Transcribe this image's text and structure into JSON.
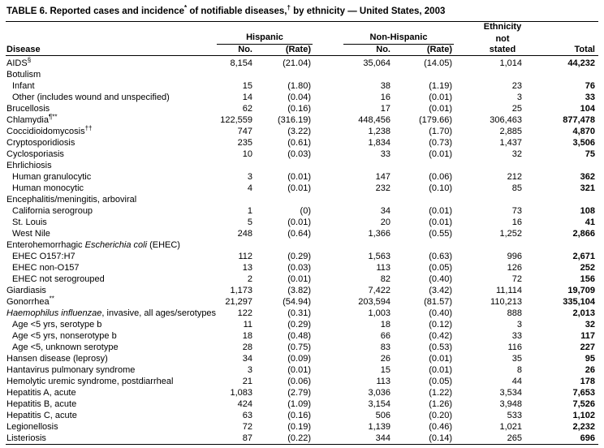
{
  "title_segments": [
    {
      "t": "TABLE 6. Reported cases and incidence"
    },
    {
      "t": "*",
      "sup": true
    },
    {
      "t": " of notifiable diseases,"
    },
    {
      "t": "†",
      "sup": true
    },
    {
      "t": " by ethnicity — United States, 2003"
    }
  ],
  "table": {
    "headers": {
      "disease": "Disease",
      "group_hispanic": "Hispanic",
      "group_non_hispanic": "Non-Hispanic",
      "no": "No.",
      "rate": "(Rate)",
      "ethnicity_line1": "Ethnicity",
      "ethnicity_line2": "not",
      "ethnicity_line3": "stated",
      "total": "Total"
    },
    "rows": [
      {
        "disease": [
          {
            "t": "AIDS"
          },
          {
            "t": "§",
            "sup": true
          }
        ],
        "indent": 0,
        "cells": [
          "8,154",
          "(21.04)",
          "35,064",
          "(14.05)",
          "1,014",
          "44,232"
        ]
      },
      {
        "disease": "Botulism",
        "indent": 0,
        "cells": []
      },
      {
        "disease": "Infant",
        "indent": 1,
        "cells": [
          "15",
          "(1.80)",
          "38",
          "(1.19)",
          "23",
          "76"
        ]
      },
      {
        "disease": "Other (includes wound and unspecified)",
        "indent": 1,
        "cells": [
          "14",
          "(0.04)",
          "16",
          "(0.01)",
          "3",
          "33"
        ]
      },
      {
        "disease": "Brucellosis",
        "indent": 0,
        "cells": [
          "62",
          "(0.16)",
          "17",
          "(0.01)",
          "25",
          "104"
        ]
      },
      {
        "disease": [
          {
            "t": "Chlamydia"
          },
          {
            "t": "¶**",
            "sup": true
          }
        ],
        "indent": 0,
        "cells": [
          "122,559",
          "(316.19)",
          "448,456",
          "(179.66)",
          "306,463",
          "877,478"
        ]
      },
      {
        "disease": [
          {
            "t": "Coccidioidomycosis"
          },
          {
            "t": "††",
            "sup": true
          }
        ],
        "indent": 0,
        "cells": [
          "747",
          "(3.22)",
          "1,238",
          "(1.70)",
          "2,885",
          "4,870"
        ]
      },
      {
        "disease": "Cryptosporidiosis",
        "indent": 0,
        "cells": [
          "235",
          "(0.61)",
          "1,834",
          "(0.73)",
          "1,437",
          "3,506"
        ]
      },
      {
        "disease": "Cyclosporiasis",
        "indent": 0,
        "cells": [
          "10",
          "(0.03)",
          "33",
          "(0.01)",
          "32",
          "75"
        ]
      },
      {
        "disease": "Ehrlichiosis",
        "indent": 0,
        "cells": []
      },
      {
        "disease": "Human granulocytic",
        "indent": 1,
        "cells": [
          "3",
          "(0.01)",
          "147",
          "(0.06)",
          "212",
          "362"
        ]
      },
      {
        "disease": "Human monocytic",
        "indent": 1,
        "cells": [
          "4",
          "(0.01)",
          "232",
          "(0.10)",
          "85",
          "321"
        ]
      },
      {
        "disease": "Encephalitis/meningitis, arboviral",
        "indent": 0,
        "cells": []
      },
      {
        "disease": "California serogroup",
        "indent": 1,
        "cells": [
          "1",
          "(0)",
          "34",
          "(0.01)",
          "73",
          "108"
        ]
      },
      {
        "disease": "St. Louis",
        "indent": 1,
        "cells": [
          "5",
          "(0.01)",
          "20",
          "(0.01)",
          "16",
          "41"
        ]
      },
      {
        "disease": "West Nile",
        "indent": 1,
        "cells": [
          "248",
          "(0.64)",
          "1,366",
          "(0.55)",
          "1,252",
          "2,866"
        ]
      },
      {
        "disease": [
          {
            "t": "Enterohemorrhagic "
          },
          {
            "t": "Escherichia coli",
            "it": true
          },
          {
            "t": " (EHEC)"
          }
        ],
        "indent": 0,
        "cells": []
      },
      {
        "disease": "EHEC O157:H7",
        "indent": 1,
        "cells": [
          "112",
          "(0.29)",
          "1,563",
          "(0.63)",
          "996",
          "2,671"
        ]
      },
      {
        "disease": "EHEC non-O157",
        "indent": 1,
        "cells": [
          "13",
          "(0.03)",
          "113",
          "(0.05)",
          "126",
          "252"
        ]
      },
      {
        "disease": "EHEC not serogrouped",
        "indent": 1,
        "cells": [
          "2",
          "(0.01)",
          "82",
          "(0.40)",
          "72",
          "156"
        ]
      },
      {
        "disease": "Giardiasis",
        "indent": 0,
        "cells": [
          "1,173",
          "(3.82)",
          "7,422",
          "(3.42)",
          "11,114",
          "19,709"
        ]
      },
      {
        "disease": [
          {
            "t": "Gonorrhea"
          },
          {
            "t": "**",
            "sup": true
          }
        ],
        "indent": 0,
        "cells": [
          "21,297",
          "(54.94)",
          "203,594",
          "(81.57)",
          "110,213",
          "335,104"
        ]
      },
      {
        "disease": [
          {
            "t": "Haemophilus influenzae",
            "it": true
          },
          {
            "t": ", invasive, all ages/serotypes"
          }
        ],
        "indent": 0,
        "cells": [
          "122",
          "(0.31)",
          "1,003",
          "(0.40)",
          "888",
          "2,013"
        ]
      },
      {
        "disease": "Age <5 yrs, serotype b",
        "indent": 1,
        "cells": [
          "11",
          "(0.29)",
          "18",
          "(0.12)",
          "3",
          "32"
        ]
      },
      {
        "disease": "Age <5 yrs, nonserotype b",
        "indent": 1,
        "cells": [
          "18",
          "(0.48)",
          "66",
          "(0.42)",
          "33",
          "117"
        ]
      },
      {
        "disease": "Age <5, unknown serotype",
        "indent": 1,
        "cells": [
          "28",
          "(0.75)",
          "83",
          "(0.53)",
          "116",
          "227"
        ]
      },
      {
        "disease": "Hansen disease (leprosy)",
        "indent": 0,
        "cells": [
          "34",
          "(0.09)",
          "26",
          "(0.01)",
          "35",
          "95"
        ]
      },
      {
        "disease": "Hantavirus pulmonary syndrome",
        "indent": 0,
        "cells": [
          "3",
          "(0.01)",
          "15",
          "(0.01)",
          "8",
          "26"
        ]
      },
      {
        "disease": "Hemolytic uremic syndrome, postdiarrheal",
        "indent": 0,
        "cells": [
          "21",
          "(0.06)",
          "113",
          "(0.05)",
          "44",
          "178"
        ]
      },
      {
        "disease": "Hepatitis A, acute",
        "indent": 0,
        "cells": [
          "1,083",
          "(2.79)",
          "3,036",
          "(1.22)",
          "3,534",
          "7,653"
        ]
      },
      {
        "disease": "Hepatitis B, acute",
        "indent": 0,
        "cells": [
          "424",
          "(1.09)",
          "3,154",
          "(1.26)",
          "3,948",
          "7,526"
        ]
      },
      {
        "disease": "Hepatitis C, acute",
        "indent": 0,
        "cells": [
          "63",
          "(0.16)",
          "506",
          "(0.20)",
          "533",
          "1,102"
        ]
      },
      {
        "disease": "Legionellosis",
        "indent": 0,
        "cells": [
          "72",
          "(0.19)",
          "1,139",
          "(0.46)",
          "1,021",
          "2,232"
        ]
      },
      {
        "disease": "Listeriosis",
        "indent": 0,
        "cells": [
          "87",
          "(0.22)",
          "344",
          "(0.14)",
          "265",
          "696"
        ]
      }
    ]
  }
}
